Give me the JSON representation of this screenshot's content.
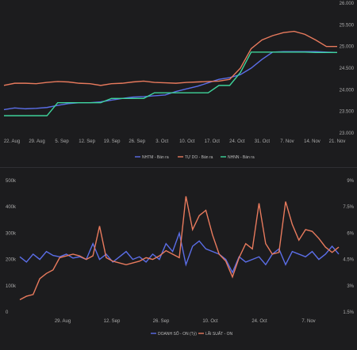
{
  "chart_data": [
    {
      "type": "line",
      "title": "",
      "xlabel": "",
      "ylabel": "",
      "x_tick_labels": [
        "22. Aug",
        "29. Aug",
        "5. Sep",
        "12. Sep",
        "19. Sep",
        "26. Sep",
        "3. Oct",
        "10. Oct",
        "17. Oct",
        "24. Oct",
        "31. Oct",
        "7. Nov",
        "14. Nov",
        "21. Nov"
      ],
      "y_tick_labels": [
        "23.000",
        "23.500",
        "24.000",
        "24.500",
        "25.000",
        "25.500",
        "26.000"
      ],
      "ylim": [
        23000,
        26000
      ],
      "y_axis_side": "right",
      "grid": false,
      "legend_position": "bottom",
      "series": [
        {
          "name": "NHTM - Bán ra",
          "color": "#5b6ee8",
          "x": [
            0,
            3,
            6,
            9,
            12,
            15,
            18,
            21,
            24,
            27,
            30,
            33,
            36,
            39,
            42,
            45,
            48,
            51,
            54,
            57,
            60,
            63,
            66,
            69,
            72,
            75,
            78,
            81,
            84,
            87,
            90,
            93
          ],
          "values": [
            23540,
            23580,
            23560,
            23570,
            23590,
            23640,
            23680,
            23700,
            23700,
            23720,
            23760,
            23800,
            23830,
            23840,
            23860,
            23880,
            23960,
            24020,
            24080,
            24160,
            24240,
            24280,
            24350,
            24500,
            24700,
            24870,
            24880,
            24880,
            24880,
            24880,
            24870,
            24860
          ]
        },
        {
          "name": "TỰ DO - Bán ra",
          "color": "#e87a5d",
          "x": [
            0,
            3,
            6,
            9,
            12,
            15,
            18,
            21,
            24,
            27,
            30,
            33,
            36,
            39,
            42,
            45,
            48,
            51,
            54,
            57,
            60,
            63,
            66,
            69,
            72,
            75,
            78,
            81,
            84,
            87,
            90,
            93
          ],
          "values": [
            24100,
            24150,
            24150,
            24140,
            24170,
            24190,
            24180,
            24150,
            24140,
            24100,
            24140,
            24150,
            24180,
            24200,
            24170,
            24160,
            24150,
            24170,
            24180,
            24190,
            24200,
            24240,
            24500,
            24950,
            25150,
            25250,
            25320,
            25350,
            25280,
            25150,
            25000,
            25000
          ]
        },
        {
          "name": "NHNN - Bán ra",
          "color": "#3ed39a",
          "x": [
            0,
            3,
            6,
            9,
            12,
            15,
            18,
            21,
            24,
            27,
            30,
            33,
            36,
            39,
            42,
            45,
            48,
            51,
            54,
            57,
            60,
            63,
            66,
            69,
            72,
            75,
            78,
            81,
            84,
            87,
            90,
            93
          ],
          "values": [
            23400,
            23400,
            23400,
            23400,
            23400,
            23700,
            23700,
            23700,
            23700,
            23700,
            23800,
            23800,
            23800,
            23800,
            23930,
            23930,
            23930,
            23930,
            23930,
            23930,
            24100,
            24100,
            24400,
            24870,
            24870,
            24870,
            24870,
            24870,
            24870,
            24860,
            24860,
            24860
          ]
        }
      ]
    },
    {
      "type": "line",
      "title": "",
      "xlabel": "",
      "ylabel": "",
      "x_tick_labels": [
        "29. Aug",
        "12. Sep",
        "26. Sep",
        "10. Oct",
        "24. Oct",
        "7. Nov"
      ],
      "y_left_tick_labels": [
        "0",
        "100k",
        "200k",
        "300k",
        "400k",
        "500k"
      ],
      "y_right_tick_labels": [
        "1.5%",
        "3%",
        "4.5%",
        "6%",
        "7.5%",
        "9%"
      ],
      "ylim_left": [
        0,
        500000
      ],
      "ylim_right": [
        1.5,
        9
      ],
      "grid": false,
      "legend_position": "bottom",
      "series": [
        {
          "name": "DOANH SỐ - ON (Tỷ)",
          "axis": "left",
          "color": "#5b6ee8",
          "x": [
            0,
            2,
            4,
            6,
            8,
            10,
            12,
            14,
            16,
            18,
            20,
            22,
            24,
            26,
            28,
            30,
            32,
            34,
            36,
            38,
            40,
            42,
            44,
            46,
            48,
            50,
            52,
            54,
            56,
            58,
            60,
            62,
            64,
            66,
            68,
            70,
            72,
            74,
            76,
            78,
            80,
            82,
            84,
            86,
            88,
            90,
            92,
            94,
            96
          ],
          "values": [
            210000,
            190000,
            220000,
            200000,
            230000,
            215000,
            210000,
            220000,
            205000,
            210000,
            200000,
            260000,
            200000,
            220000,
            190000,
            210000,
            230000,
            200000,
            210000,
            190000,
            220000,
            200000,
            260000,
            230000,
            300000,
            180000,
            250000,
            270000,
            240000,
            230000,
            220000,
            200000,
            150000,
            210000,
            190000,
            200000,
            210000,
            180000,
            220000,
            240000,
            180000,
            230000,
            220000,
            210000,
            230000,
            200000,
            220000,
            250000,
            220000
          ]
        },
        {
          "name": "LÃI SUẤT - ON",
          "axis": "right",
          "color": "#e87a5d",
          "x": [
            0,
            2,
            4,
            6,
            8,
            10,
            12,
            14,
            16,
            18,
            20,
            22,
            24,
            26,
            28,
            30,
            32,
            34,
            36,
            38,
            40,
            42,
            44,
            46,
            48,
            50,
            52,
            54,
            56,
            58,
            60,
            62,
            64,
            66,
            68,
            70,
            72,
            74,
            76,
            78,
            80,
            82,
            84,
            86,
            88,
            90,
            92,
            94,
            96
          ],
          "values": [
            2.2,
            2.4,
            2.5,
            3.4,
            3.7,
            3.9,
            4.6,
            4.7,
            4.8,
            4.7,
            4.5,
            4.7,
            6.4,
            4.6,
            4.4,
            4.3,
            4.2,
            4.3,
            4.4,
            4.6,
            4.5,
            4.7,
            5.0,
            4.8,
            4.6,
            8.1,
            6.2,
            7.0,
            7.3,
            5.9,
            4.8,
            4.4,
            3.5,
            4.6,
            5.4,
            5.1,
            7.7,
            5.4,
            4.8,
            4.9,
            7.8,
            6.5,
            5.6,
            6.2,
            6.1,
            5.7,
            5.2,
            4.9,
            5.2
          ]
        }
      ]
    }
  ]
}
